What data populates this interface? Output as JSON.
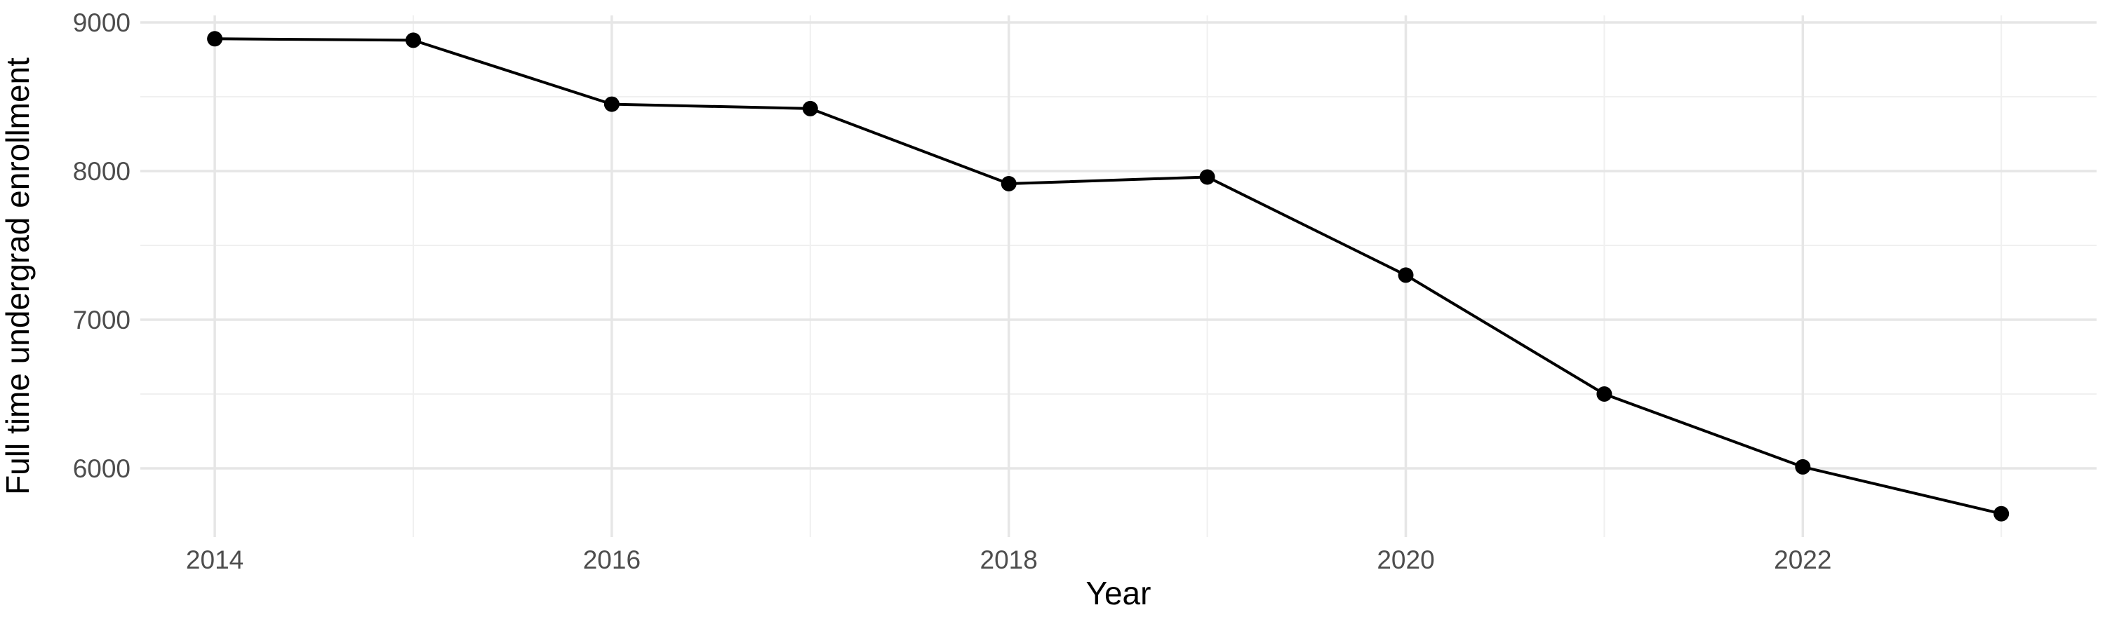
{
  "chart_data": {
    "type": "line",
    "title": "",
    "xlabel": "Year",
    "ylabel": "Full time undergrad enrollment",
    "x": [
      2014,
      2015,
      2016,
      2017,
      2018,
      2019,
      2020,
      2021,
      2022,
      2023
    ],
    "series": [
      {
        "name": "Full time undergrad enrollment",
        "values": [
          8890,
          8880,
          8450,
          8420,
          7915,
          7960,
          7300,
          6500,
          6010,
          5695
        ]
      }
    ],
    "x_tick_labels": [
      "2014",
      "2016",
      "2018",
      "2020",
      "2022"
    ],
    "x_major_ticks": [
      2014,
      2016,
      2018,
      2020,
      2022
    ],
    "x_minor_ticks": [
      2015,
      2017,
      2019,
      2021,
      2023
    ],
    "y_tick_labels": [
      "9000",
      "8000",
      "7000",
      "6000"
    ],
    "y_major_ticks": [
      9000,
      8000,
      7000,
      6000
    ],
    "y_minor_ticks": [
      8500,
      7500,
      6500
    ],
    "x_range": [
      2013.625,
      2023.48
    ],
    "y_range": [
      5538,
      9047
    ],
    "grid": true,
    "legend": false,
    "marker": "circle",
    "colors": {
      "line": "#000000",
      "point": "#000000",
      "grid_major": "#e6e6e6",
      "grid_minor": "#f0f0f0",
      "tick_label": "#4d4d4d",
      "axis_title": "#000000",
      "background": "#ffffff"
    }
  }
}
